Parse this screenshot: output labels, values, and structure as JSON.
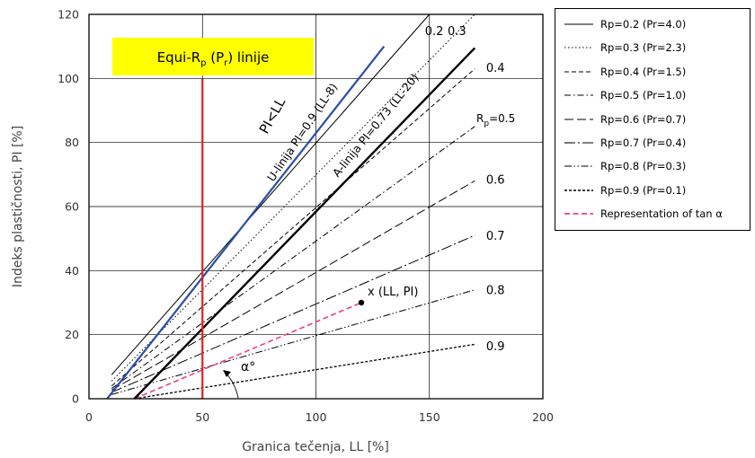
{
  "chart_data": {
    "type": "line",
    "title": "",
    "xlabel": "Granica tečenja, LL [%]",
    "ylabel": "Indeks plastičnosti, PI [%]",
    "xlim": [
      0,
      200
    ],
    "ylim": [
      0,
      120
    ],
    "xticks": [
      0,
      50,
      100,
      150,
      200
    ],
    "yticks": [
      0,
      20,
      40,
      60,
      80,
      100,
      120
    ],
    "grid": true,
    "legend_position": "right-top",
    "colors": {
      "blue": "#2b4ea8",
      "red": "#e02020",
      "pink": "#e8408a",
      "yellow": "#ffff00"
    },
    "series": [
      {
        "name": "Rp=0.2 (Pr=4.0)",
        "style": "solid",
        "line_width": 1.0,
        "points": [
          [
            10,
            7.5
          ],
          [
            150,
            120
          ]
        ]
      },
      {
        "name": "Rp=0.3 (Pr=2.3)",
        "style": "dotted",
        "line_width": 1.0,
        "points": [
          [
            10,
            5.5
          ],
          [
            170,
            120
          ]
        ]
      },
      {
        "name": "Rp=0.4 (Pr=1.5)",
        "style": "dashed",
        "line_width": 1.0,
        "points": [
          [
            10,
            4
          ],
          [
            170,
            103
          ]
        ]
      },
      {
        "name": "Rp=0.5 (Pr=1.0)",
        "style": "dashdot",
        "line_width": 1.0,
        "points": [
          [
            10,
            3.2
          ],
          [
            170,
            85
          ]
        ]
      },
      {
        "name": "Rp=0.6 (Pr=0.7)",
        "style": "longdash",
        "line_width": 1.0,
        "points": [
          [
            10,
            2.7
          ],
          [
            170,
            68
          ]
        ]
      },
      {
        "name": "Rp=0.7 (Pr=0.4)",
        "style": "longdashdot",
        "line_width": 1.0,
        "points": [
          [
            10,
            2
          ],
          [
            170,
            51
          ]
        ]
      },
      {
        "name": "Rp=0.8 (Pr=0.3)",
        "style": "dashdotdot",
        "line_width": 1.0,
        "points": [
          [
            10,
            1.3
          ],
          [
            170,
            34
          ]
        ]
      },
      {
        "name": "Rp=0.9 (Pr=0.1)",
        "style": "shortdash",
        "line_width": 1.2,
        "points": [
          [
            20,
            0
          ],
          [
            170,
            17
          ]
        ]
      },
      {
        "name": "Representation of tan α",
        "style": "pinkdash",
        "line_width": 1.5,
        "points": [
          [
            20,
            0
          ],
          [
            120,
            30
          ]
        ]
      }
    ],
    "reference_lines": [
      {
        "name": "U-linija",
        "color": "#2b4ea8",
        "points": [
          [
            8,
            0
          ],
          [
            130,
            110
          ]
        ]
      },
      {
        "name": "A-linija",
        "color": "#000000",
        "points": [
          [
            20,
            0
          ],
          [
            170,
            109.5
          ]
        ]
      },
      {
        "name": "Equi-Rp line",
        "color": "#e02020",
        "points": [
          [
            50,
            0
          ],
          [
            50,
            100
          ]
        ]
      }
    ],
    "point": {
      "label": "x (LL, PI)",
      "x": 120,
      "y": 30
    },
    "annotations": {
      "box_text": "Equi-R",
      "box_sub_p": "p",
      "box_mid": " (P",
      "box_sub_r": "r",
      "box_end": ") linije",
      "u_line_label": "U-linija PI=0.9 (LL-8)",
      "a_line_label": "A-linija PI=0.73 (LL-20)",
      "pi_ll_label": "PI<LL",
      "alpha_label": "α°",
      "rp_prefix": "R",
      "rp_sub": "p",
      "rp_eq": "=0.5"
    },
    "curve_labels": [
      {
        "text": "0.2",
        "x": 150,
        "y": 115
      },
      {
        "text": "0.3",
        "x": 160,
        "y": 115
      },
      {
        "text": "0.4",
        "x": 175,
        "y": 103.5
      },
      {
        "text": "0.6",
        "x": 175,
        "y": 68.5
      },
      {
        "text": "0.7",
        "x": 175,
        "y": 51
      },
      {
        "text": "0.8",
        "x": 175,
        "y": 34
      },
      {
        "text": "0.9",
        "x": 175,
        "y": 16.5
      }
    ]
  }
}
